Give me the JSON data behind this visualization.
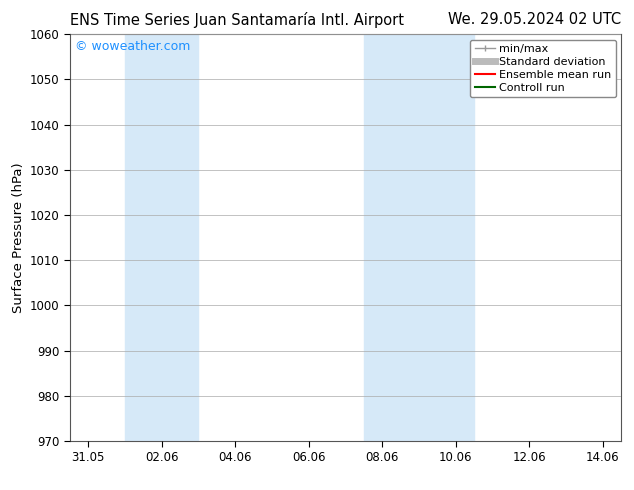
{
  "title_left": "ENS Time Series Juan Santamaría Intl. Airport",
  "title_right": "We. 29.05.2024 02 UTC",
  "ylabel": "Surface Pressure (hPa)",
  "ylim": [
    970,
    1060
  ],
  "yticks": [
    970,
    980,
    990,
    1000,
    1010,
    1020,
    1030,
    1040,
    1050,
    1060
  ],
  "xtick_labels": [
    "31.05",
    "02.06",
    "04.06",
    "06.06",
    "08.06",
    "10.06",
    "12.06",
    "14.06"
  ],
  "xtick_positions": [
    0,
    2,
    4,
    6,
    8,
    10,
    12,
    14
  ],
  "xlim": [
    -0.5,
    14.5
  ],
  "shaded_bands": [
    {
      "x_start": 1.0,
      "x_end": 3.0
    },
    {
      "x_start": 7.5,
      "x_end": 10.5
    }
  ],
  "shaded_color": "#d6e9f8",
  "watermark_text": "© woweather.com",
  "watermark_color": "#1E90FF",
  "background_color": "#ffffff",
  "plot_bg_color": "#ffffff",
  "grid_color": "#aaaaaa",
  "legend_items": [
    {
      "label": "min/max",
      "color": "#999999",
      "lw": 1.0
    },
    {
      "label": "Standard deviation",
      "color": "#bbbbbb",
      "lw": 5
    },
    {
      "label": "Ensemble mean run",
      "color": "#ff0000",
      "lw": 1.5
    },
    {
      "label": "Controll run",
      "color": "#006600",
      "lw": 1.5
    }
  ],
  "title_fontsize": 10.5,
  "tick_fontsize": 8.5,
  "legend_fontsize": 8.0,
  "ylabel_fontsize": 9.5,
  "watermark_fontsize": 9.0
}
